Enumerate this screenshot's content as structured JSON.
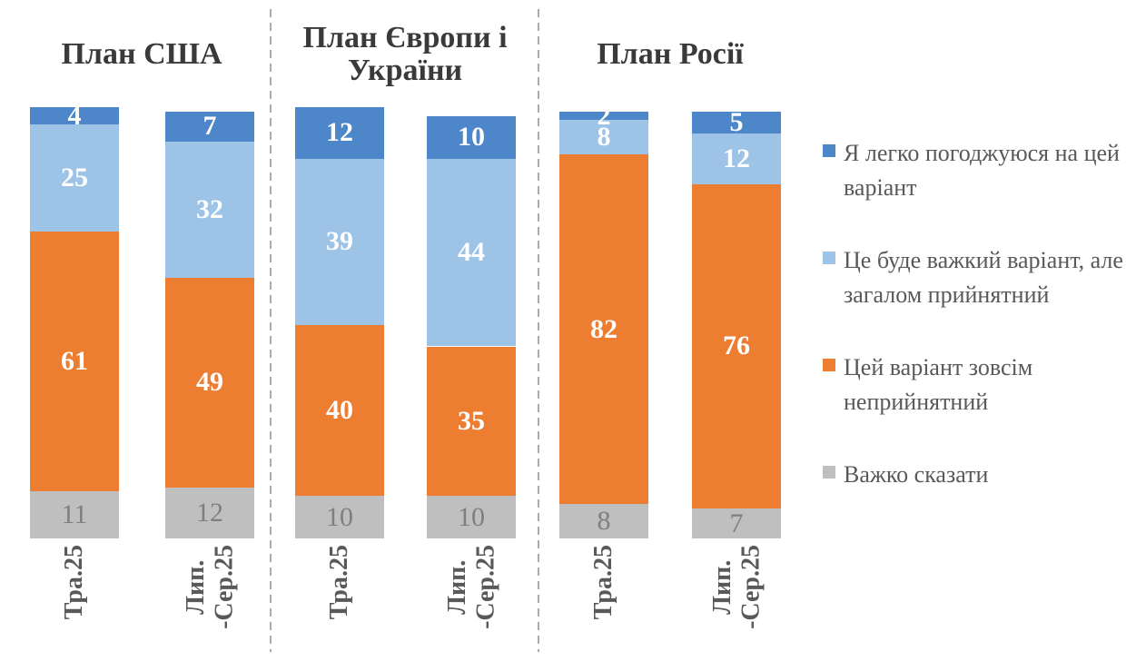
{
  "chart_data": {
    "type": "bar",
    "stacked": true,
    "unit": "percent",
    "y_axis_visible": false,
    "gridlines": false,
    "legend_position": "right",
    "groups": [
      {
        "title": "План США",
        "bars": [
          {
            "category": "Тра.25",
            "values": [
              11,
              61,
              25,
              4
            ]
          },
          {
            "category": "Лип.-Сер.25",
            "values": [
              12,
              49,
              32,
              7
            ]
          }
        ]
      },
      {
        "title": "План Європи і України",
        "bars": [
          {
            "category": "Тра.25",
            "values": [
              10,
              40,
              39,
              12
            ]
          },
          {
            "category": "Лип.-Сер.25",
            "values": [
              10,
              35,
              44,
              10
            ]
          }
        ]
      },
      {
        "title": "План Росії",
        "bars": [
          {
            "category": "Тра.25",
            "values": [
              8,
              82,
              8,
              2
            ]
          },
          {
            "category": "Лип.-Сер.25",
            "values": [
              7,
              76,
              12,
              5
            ]
          }
        ]
      }
    ],
    "series_bottom_to_top": [
      {
        "name": "Важко сказати",
        "color": "#BFBFBF",
        "label_color": "#7F7F7F",
        "label_bold": false
      },
      {
        "name": "Цей варіант зовсім неприйнятний",
        "color": "#ED7D31",
        "label_color": "#FFFFFF",
        "label_bold": true
      },
      {
        "name": "Це буде важкий варіант, але загалом прийнятний",
        "color": "#9DC3E6",
        "label_color": "#FFFFFF",
        "label_bold": true
      },
      {
        "name": "Я легко погоджуюся на цей варіант",
        "color": "#4E87C9",
        "label_color": "#FFFFFF",
        "label_bold": true
      }
    ],
    "legend": [
      {
        "label": "Я легко погоджуюся на цей варіант",
        "color": "#4E87C9"
      },
      {
        "label": "Це буде важкий варіант, але загалом прийнятний",
        "color": "#9DC3E6"
      },
      {
        "label": "Цей варіант зовсім неприйнятний",
        "color": "#ED7D31"
      },
      {
        "label": "Важко сказати",
        "color": "#BFBFBF"
      }
    ]
  }
}
